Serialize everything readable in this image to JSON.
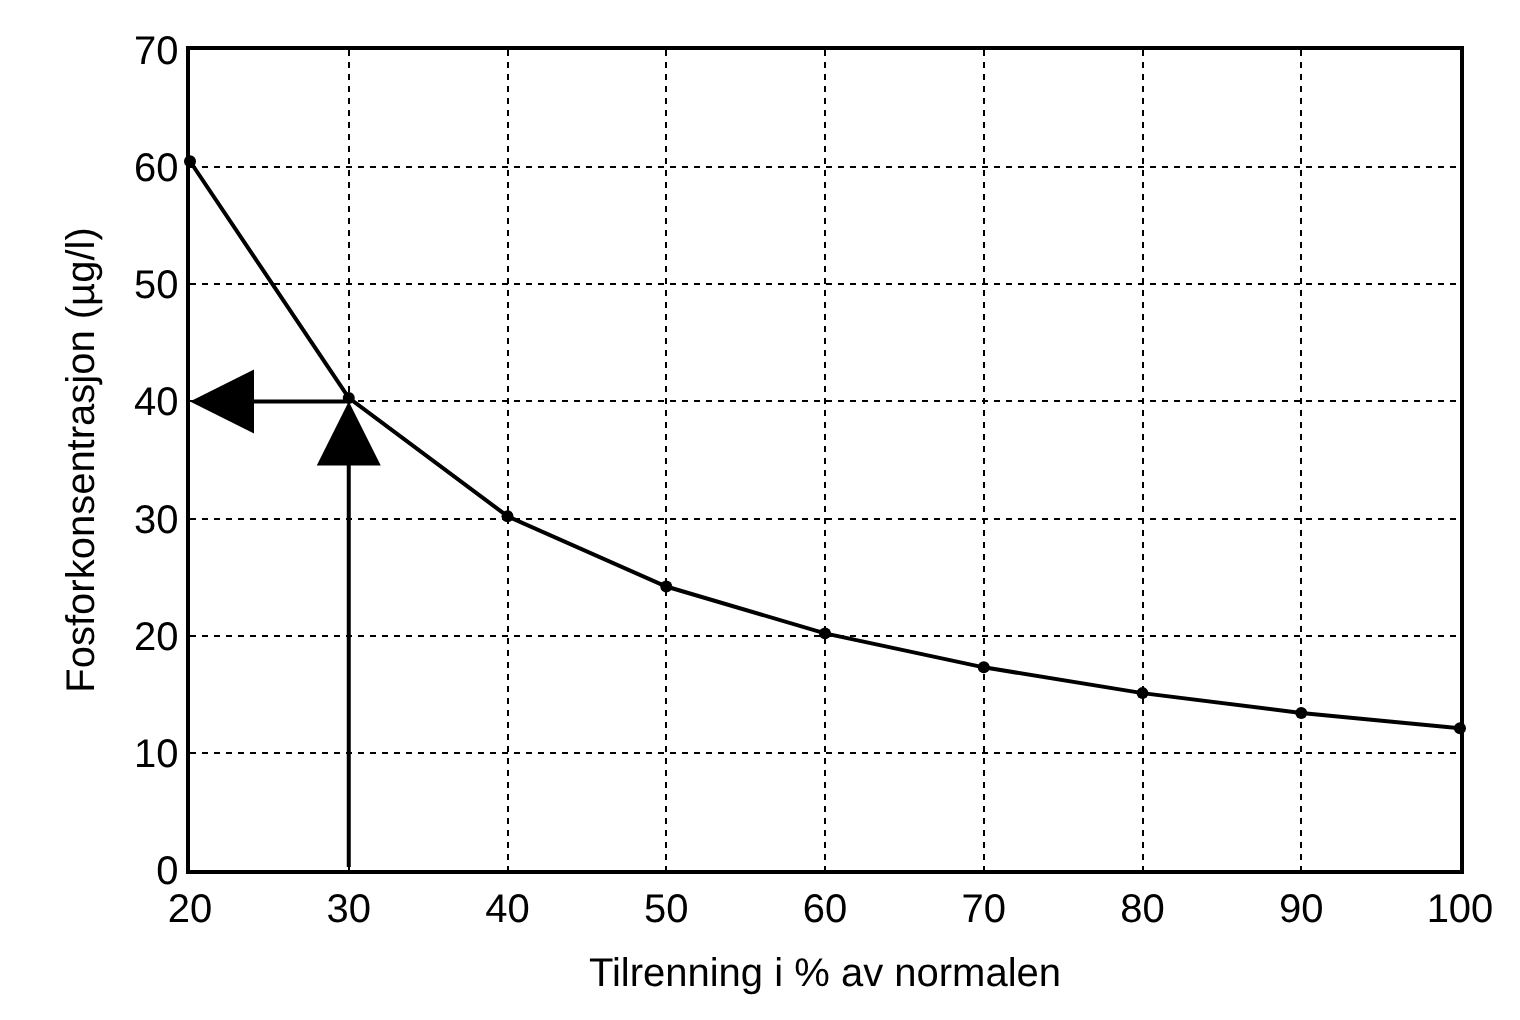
{
  "chart_data": {
    "type": "line",
    "xlabel": "Tilrenning i % av normalen",
    "ylabel": "Fosforkonsentrasjon (µg/l)",
    "x": [
      20,
      30,
      40,
      50,
      60,
      70,
      80,
      90,
      100
    ],
    "series": [
      {
        "color": "#000000",
        "values": [
          60.5,
          40.3,
          30.2,
          24.2,
          20.2,
          17.3,
          15.1,
          13.4,
          12.1
        ]
      }
    ],
    "xlim": [
      20,
      100
    ],
    "xticks": [
      20,
      30,
      40,
      50,
      60,
      70,
      80,
      90,
      100
    ],
    "ylim": [
      0,
      70
    ],
    "yticks": [
      0,
      10,
      20,
      30,
      40,
      50,
      60,
      70
    ],
    "grid": true,
    "marker": "circle",
    "line_style": "solid",
    "ref_lines": [
      {
        "axis": "x",
        "value": 30,
        "color": "#000000"
      },
      {
        "axis": "y",
        "value": 40,
        "color": "#000000"
      }
    ]
  }
}
